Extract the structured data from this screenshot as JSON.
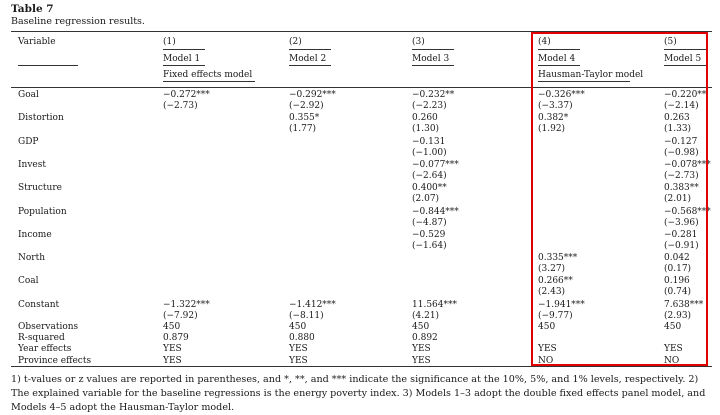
{
  "table": {
    "title": "Table 7",
    "caption": "Baseline regression results.",
    "header": {
      "variable": "Variable",
      "nums": [
        "(1)",
        "(2)",
        "(3)",
        "(4)",
        "(5)"
      ],
      "models": [
        "Model 1",
        "Model 2",
        "Model 3",
        "Model 4",
        "Model 5"
      ],
      "group_fe": "Fixed effects model",
      "group_ht": "Hausman-Taylor model"
    },
    "rows": [
      {
        "label": "Goal",
        "c": [
          "−0.272***",
          "−0.292***",
          "−0.232**",
          "−0.326***",
          "−0.220**"
        ],
        "t": [
          "(−2.73)",
          "(−2.92)",
          "(−2.23)",
          "(−3.37)",
          "(−2.14)"
        ]
      },
      {
        "label": "Distortion",
        "c": [
          "",
          "0.355*",
          "0.260",
          "0.382*",
          "0.263"
        ],
        "t": [
          "",
          "(1.77)",
          "(1.30)",
          "(1.92)",
          "(1.33)"
        ]
      },
      {
        "label": "GDP",
        "c": [
          "",
          "",
          "−0.131",
          "",
          "−0.127"
        ],
        "t": [
          "",
          "",
          "(−1.00)",
          "",
          "(−0.98)"
        ]
      },
      {
        "label": "Invest",
        "c": [
          "",
          "",
          "−0.077***",
          "",
          "−0.078***"
        ],
        "t": [
          "",
          "",
          "(−2.64)",
          "",
          "(−2.73)"
        ]
      },
      {
        "label": "Structure",
        "c": [
          "",
          "",
          "0.400**",
          "",
          "0.383**"
        ],
        "t": [
          "",
          "",
          "(2.07)",
          "",
          "(2.01)"
        ]
      },
      {
        "label": "Population",
        "c": [
          "",
          "",
          "−0.844***",
          "",
          "−0.568***"
        ],
        "t": [
          "",
          "",
          "(−4.87)",
          "",
          "(−3.96)"
        ]
      },
      {
        "label": "Income",
        "c": [
          "",
          "",
          "−0.529",
          "",
          "−0.281"
        ],
        "t": [
          "",
          "",
          "(−1.64)",
          "",
          "(−0.91)"
        ]
      },
      {
        "label": "North",
        "c": [
          "",
          "",
          "",
          "0.335***",
          "0.042"
        ],
        "t": [
          "",
          "",
          "",
          "(3.27)",
          "(0.17)"
        ]
      },
      {
        "label": "Coal",
        "c": [
          "",
          "",
          "",
          "0.266**",
          "0.196"
        ],
        "t": [
          "",
          "",
          "",
          "(2.43)",
          "(0.74)"
        ]
      },
      {
        "label": "Constant",
        "c": [
          "−1.322***",
          "−1.412***",
          "11.564***",
          "−1.941***",
          "7.638***"
        ],
        "t": [
          "(−7.92)",
          "(−8.11)",
          "(4.21)",
          "(−9.77)",
          "(2.93)"
        ]
      }
    ],
    "stats": [
      {
        "label": "Observations",
        "c": [
          "450",
          "450",
          "450",
          "450",
          "450"
        ]
      },
      {
        "label": "R-squared",
        "c": [
          "0.879",
          "0.880",
          "0.892",
          "",
          ""
        ]
      },
      {
        "label": "Year effects",
        "c": [
          "YES",
          "YES",
          "YES",
          "YES",
          "YES"
        ]
      },
      {
        "label": "Province effects",
        "c": [
          "YES",
          "YES",
          "YES",
          "NO",
          "NO"
        ]
      }
    ],
    "highlight_color": "#e00000"
  },
  "footnote": "1) t-values or z values are reported in parentheses, and *, **, and *** indicate the significance at the 10%, 5%, and 1% levels, respectively. 2) The explained variable for the baseline regressions is the energy poverty index. 3) Models 1–3 adopt the double fixed effects panel model, and Models 4–5 adopt the Hausman-Taylor model."
}
